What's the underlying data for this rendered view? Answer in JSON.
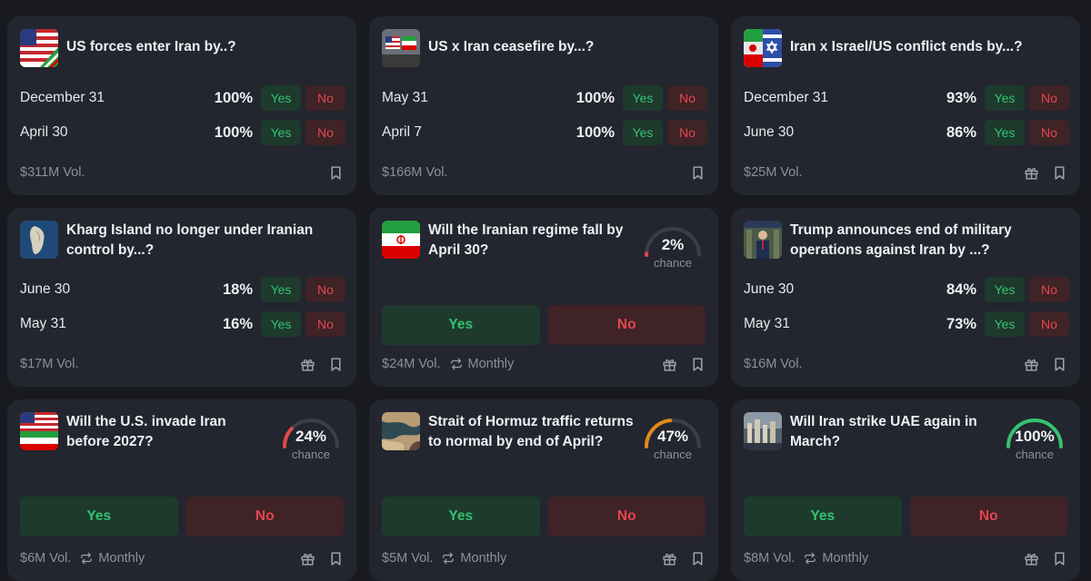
{
  "cards": [
    {
      "title": "US forces enter Iran by..?",
      "outcomes": [
        {
          "label": "December 31",
          "pct": "100%",
          "yes": "Yes",
          "no": "No"
        },
        {
          "label": "April 30",
          "pct": "100%",
          "yes": "Yes",
          "no": "No"
        }
      ],
      "volume": "$311M Vol."
    },
    {
      "title": "US x Iran ceasefire by...?",
      "outcomes": [
        {
          "label": "May 31",
          "pct": "100%",
          "yes": "Yes",
          "no": "No"
        },
        {
          "label": "April 7",
          "pct": "100%",
          "yes": "Yes",
          "no": "No"
        }
      ],
      "volume": "$166M Vol."
    },
    {
      "title": "Iran x Israel/US conflict ends by...?",
      "outcomes": [
        {
          "label": "December 31",
          "pct": "93%",
          "yes": "Yes",
          "no": "No"
        },
        {
          "label": "June 30",
          "pct": "86%",
          "yes": "Yes",
          "no": "No"
        }
      ],
      "volume": "$25M Vol."
    },
    {
      "title": "Kharg Island no longer under Iranian control by...?",
      "outcomes": [
        {
          "label": "June 30",
          "pct": "18%",
          "yes": "Yes",
          "no": "No"
        },
        {
          "label": "May 31",
          "pct": "16%",
          "yes": "Yes",
          "no": "No"
        }
      ],
      "volume": "$17M Vol."
    },
    {
      "title": "Will the Iranian regime fall by April 30?",
      "chance": "2%",
      "chance_value": 0.02,
      "chance_label": "chance",
      "yes": "Yes",
      "no": "No",
      "volume": "$24M Vol.",
      "recurrence": "Monthly"
    },
    {
      "title": "Trump announces end of military operations against Iran by ...?",
      "outcomes": [
        {
          "label": "June 30",
          "pct": "84%",
          "yes": "Yes",
          "no": "No"
        },
        {
          "label": "May 31",
          "pct": "73%",
          "yes": "Yes",
          "no": "No"
        }
      ],
      "volume": "$16M Vol."
    },
    {
      "title": "Will the U.S. invade Iran before 2027?",
      "chance": "24%",
      "chance_value": 0.24,
      "chance_label": "chance",
      "yes": "Yes",
      "no": "No",
      "volume": "$6M Vol.",
      "recurrence": "Monthly"
    },
    {
      "title": "Strait of Hormuz traffic returns to normal by end of April?",
      "chance": "47%",
      "chance_value": 0.47,
      "chance_label": "chance",
      "yes": "Yes",
      "no": "No",
      "volume": "$5M Vol.",
      "recurrence": "Monthly"
    },
    {
      "title": "Will Iran strike UAE again in March?",
      "chance": "100%",
      "chance_value": 1.0,
      "chance_label": "chance",
      "yes": "Yes",
      "no": "No",
      "volume": "$8M Vol.",
      "recurrence": "Monthly"
    }
  ],
  "colors": {
    "background": "#181a20",
    "card": "#23262e",
    "yes_text": "#34c26f",
    "yes_bg": "#1d3a2d",
    "no_text": "#e4474d",
    "no_bg": "#3f2326",
    "gauge_red": "#e4474d",
    "gauge_orange": "#e08a1e",
    "gauge_green": "#34c26f",
    "gauge_track": "#3a3e48"
  },
  "icons": {
    "bookmark": "bookmark-icon",
    "gift": "gift-icon",
    "recurrence": "repeat-icon"
  }
}
